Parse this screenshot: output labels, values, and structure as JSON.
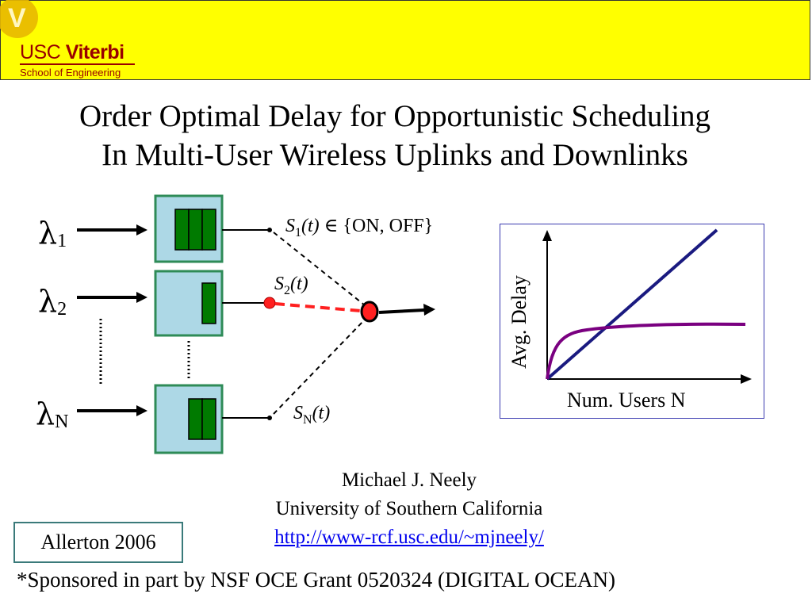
{
  "header": {
    "logo_usc": "USC",
    "logo_viterbi": "Viterbi",
    "logo_school": "School of Engineering",
    "logo_letter": "V",
    "bar_color": "#ffff00"
  },
  "title": {
    "line1": "Order Optimal Delay for Opportunistic Scheduling",
    "line2": "In Multi-User Wireless Uplinks and Downlinks"
  },
  "diagram": {
    "lambda_symbol": "λ",
    "lambda1_sub": "1",
    "lambda2_sub": "2",
    "lambdaN_sub": "N",
    "s1_main": "S",
    "s1_sub": "1",
    "s1_t": "(t)",
    "s1_set": " ∈ {ON, OFF}",
    "s2_main": "S",
    "s2_sub": "2",
    "s2_t": "(t)",
    "sN_main": "S",
    "sN_sub": "N",
    "sN_t": "(t)",
    "queue_fill_color": "#add8e6",
    "packet_color": "#007a00",
    "selected_color": "#ff0000"
  },
  "graph": {
    "ylabel": "Avg. Delay",
    "xlabel": "Num. Users N",
    "linear_color": "#1a1a80",
    "log_color": "#7a0080"
  },
  "author": {
    "name": "Michael J. Neely",
    "affiliation": "University of Southern California",
    "url": "http://www-rcf.usc.edu/~mjneely/"
  },
  "venue": "Allerton 2006",
  "sponsor": "*Sponsored in part by NSF OCE Grant 0520324  (DIGITAL OCEAN)"
}
